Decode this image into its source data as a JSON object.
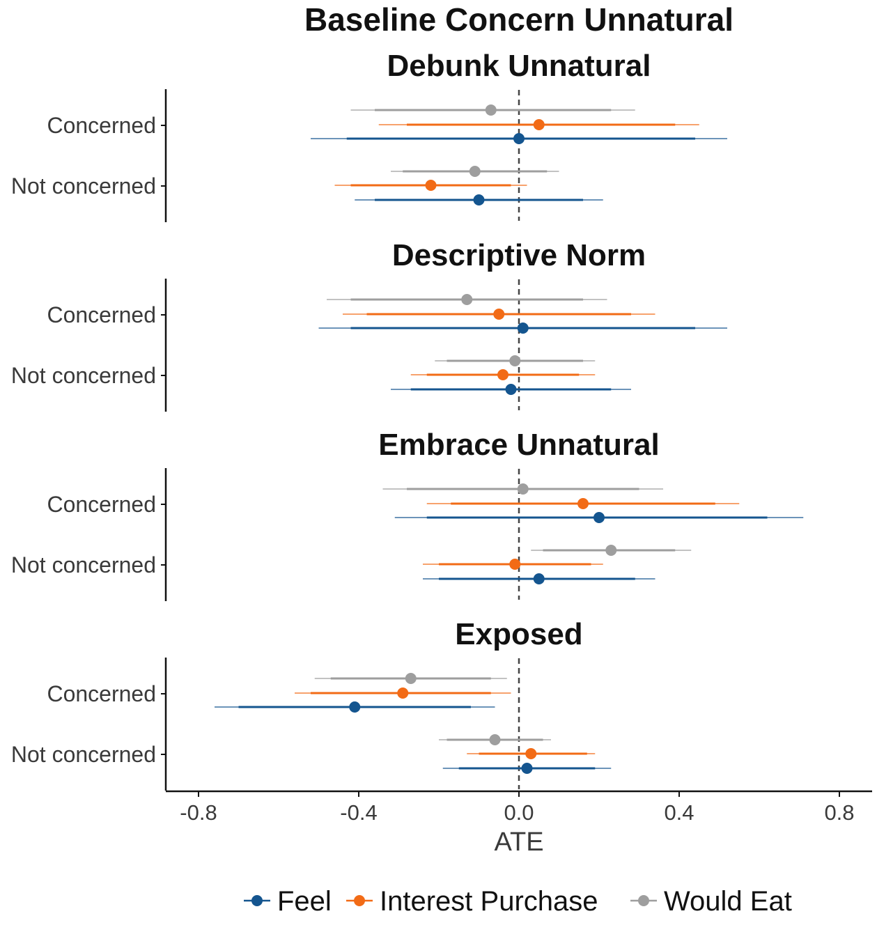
{
  "chart_data": {
    "type": "forest",
    "title": "Baseline Concern Unnatural",
    "xlabel": "ATE",
    "xlim": [
      -0.88,
      0.88
    ],
    "xticks": [
      -0.8,
      -0.4,
      0.0,
      0.4,
      0.8
    ],
    "xtick_labels": [
      "-0.8",
      "-0.4",
      "0.0",
      "0.4",
      "0.8"
    ],
    "reference_line": 0,
    "categories": [
      "Concerned",
      "Not concerned"
    ],
    "colors": {
      "Feel": "#14558f",
      "Interest Purchase": "#f26b16",
      "Would Eat": "#9e9e9e"
    },
    "legend": [
      "Feel",
      "Interest Purchase",
      "Would Eat"
    ],
    "legend_position": "bottom",
    "panels": [
      {
        "title": "Debunk Unnatural",
        "rows": [
          {
            "group": "Concerned",
            "series": "Would Eat",
            "estimate": -0.07,
            "inner": [
              -0.36,
              0.23
            ],
            "outer": [
              -0.42,
              0.29
            ]
          },
          {
            "group": "Concerned",
            "series": "Interest Purchase",
            "estimate": 0.05,
            "inner": [
              -0.28,
              0.39
            ],
            "outer": [
              -0.35,
              0.45
            ]
          },
          {
            "group": "Concerned",
            "series": "Feel",
            "estimate": 0.0,
            "inner": [
              -0.43,
              0.44
            ],
            "outer": [
              -0.52,
              0.52
            ]
          },
          {
            "group": "Not concerned",
            "series": "Would Eat",
            "estimate": -0.11,
            "inner": [
              -0.29,
              0.07
            ],
            "outer": [
              -0.32,
              0.1
            ]
          },
          {
            "group": "Not concerned",
            "series": "Interest Purchase",
            "estimate": -0.22,
            "inner": [
              -0.42,
              -0.02
            ],
            "outer": [
              -0.46,
              0.02
            ]
          },
          {
            "group": "Not concerned",
            "series": "Feel",
            "estimate": -0.1,
            "inner": [
              -0.36,
              0.16
            ],
            "outer": [
              -0.41,
              0.21
            ]
          }
        ]
      },
      {
        "title": "Descriptive Norm",
        "rows": [
          {
            "group": "Concerned",
            "series": "Would Eat",
            "estimate": -0.13,
            "inner": [
              -0.42,
              0.16
            ],
            "outer": [
              -0.48,
              0.22
            ]
          },
          {
            "group": "Concerned",
            "series": "Interest Purchase",
            "estimate": -0.05,
            "inner": [
              -0.38,
              0.28
            ],
            "outer": [
              -0.44,
              0.34
            ]
          },
          {
            "group": "Concerned",
            "series": "Feel",
            "estimate": 0.01,
            "inner": [
              -0.42,
              0.44
            ],
            "outer": [
              -0.5,
              0.52
            ]
          },
          {
            "group": "Not concerned",
            "series": "Would Eat",
            "estimate": -0.01,
            "inner": [
              -0.18,
              0.16
            ],
            "outer": [
              -0.21,
              0.19
            ]
          },
          {
            "group": "Not concerned",
            "series": "Interest Purchase",
            "estimate": -0.04,
            "inner": [
              -0.23,
              0.15
            ],
            "outer": [
              -0.27,
              0.19
            ]
          },
          {
            "group": "Not concerned",
            "series": "Feel",
            "estimate": -0.02,
            "inner": [
              -0.27,
              0.23
            ],
            "outer": [
              -0.32,
              0.28
            ]
          }
        ]
      },
      {
        "title": "Embrace Unnatural",
        "rows": [
          {
            "group": "Concerned",
            "series": "Would Eat",
            "estimate": 0.01,
            "inner": [
              -0.28,
              0.3
            ],
            "outer": [
              -0.34,
              0.36
            ]
          },
          {
            "group": "Concerned",
            "series": "Interest Purchase",
            "estimate": 0.16,
            "inner": [
              -0.17,
              0.49
            ],
            "outer": [
              -0.23,
              0.55
            ]
          },
          {
            "group": "Concerned",
            "series": "Feel",
            "estimate": 0.2,
            "inner": [
              -0.23,
              0.62
            ],
            "outer": [
              -0.31,
              0.71
            ]
          },
          {
            "group": "Not concerned",
            "series": "Would Eat",
            "estimate": 0.23,
            "inner": [
              0.06,
              0.39
            ],
            "outer": [
              0.03,
              0.43
            ]
          },
          {
            "group": "Not concerned",
            "series": "Interest Purchase",
            "estimate": -0.01,
            "inner": [
              -0.2,
              0.18
            ],
            "outer": [
              -0.24,
              0.21
            ]
          },
          {
            "group": "Not concerned",
            "series": "Feel",
            "estimate": 0.05,
            "inner": [
              -0.2,
              0.29
            ],
            "outer": [
              -0.24,
              0.34
            ]
          }
        ]
      },
      {
        "title": "Exposed",
        "rows": [
          {
            "group": "Concerned",
            "series": "Would Eat",
            "estimate": -0.27,
            "inner": [
              -0.47,
              -0.07
            ],
            "outer": [
              -0.51,
              -0.03
            ]
          },
          {
            "group": "Concerned",
            "series": "Interest Purchase",
            "estimate": -0.29,
            "inner": [
              -0.52,
              -0.07
            ],
            "outer": [
              -0.56,
              -0.02
            ]
          },
          {
            "group": "Concerned",
            "series": "Feel",
            "estimate": -0.41,
            "inner": [
              -0.7,
              -0.12
            ],
            "outer": [
              -0.76,
              -0.06
            ]
          },
          {
            "group": "Not concerned",
            "series": "Would Eat",
            "estimate": -0.06,
            "inner": [
              -0.18,
              0.06
            ],
            "outer": [
              -0.2,
              0.08
            ]
          },
          {
            "group": "Not concerned",
            "series": "Interest Purchase",
            "estimate": 0.03,
            "inner": [
              -0.1,
              0.17
            ],
            "outer": [
              -0.13,
              0.19
            ]
          },
          {
            "group": "Not concerned",
            "series": "Feel",
            "estimate": 0.02,
            "inner": [
              -0.15,
              0.19
            ],
            "outer": [
              -0.19,
              0.23
            ]
          }
        ]
      }
    ]
  }
}
